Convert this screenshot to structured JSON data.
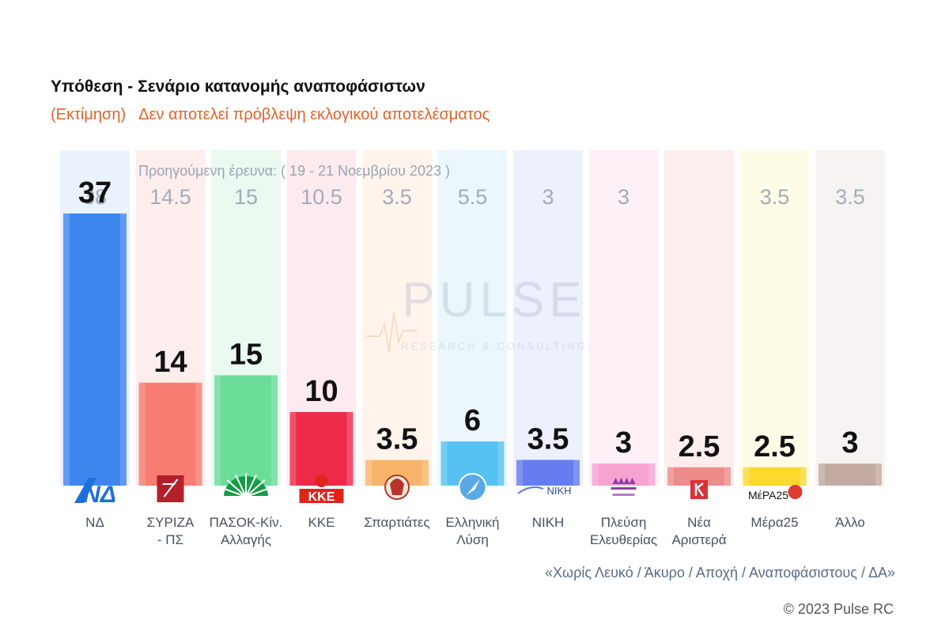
{
  "title": "Υπόθεση - Σενάριο κατανομής αναποφάσιστων",
  "subtitle_estimate": "(Εκτίμηση)",
  "subtitle_note": "Δεν αποτελεί πρόβλεψη εκλογικού αποτελέσματος",
  "watermark": {
    "brand": "PULSE",
    "tagline": "RESEARCH & CONSULTING"
  },
  "footnote": "«Χωρίς Λευκό / Άκυρο / Αποχή / Αναποφάσιστους / ΔΑ»",
  "copyright": "© 2023 Pulse RC",
  "chart_data": {
    "type": "bar",
    "previous_survey_label": "Προηγούμενη έρευνα:  ( 19 - 21 Νοεμβρίου 2023 )",
    "categories": [
      "ΝΔ",
      "ΣΥΡΙΖΑ - ΠΣ",
      "ΠΑΣΟΚ-Κίν. Αλλαγής",
      "ΚΚΕ",
      "Σπαρτιάτες",
      "Ελληνική Λύση",
      "ΝΙΚΗ",
      "Πλεύση Ελευθερίας",
      "Νέα Αριστερά",
      "Μέρα25",
      "Άλλο"
    ],
    "label_lines": [
      [
        "ΝΔ"
      ],
      [
        "ΣΥΡΙΖΑ",
        "- ΠΣ"
      ],
      [
        "ΠΑΣΟΚ-Κίν.",
        "Αλλαγής"
      ],
      [
        "ΚΚΕ"
      ],
      [
        "Σπαρτιάτες"
      ],
      [
        "Ελληνική",
        "Λύση"
      ],
      [
        "ΝΙΚΗ"
      ],
      [
        "Πλεύση",
        "Ελευθερίας"
      ],
      [
        "Νέα",
        "Αριστερά"
      ],
      [
        "Μέρα25"
      ],
      [
        "Άλλο"
      ]
    ],
    "values": [
      37,
      14,
      15,
      10,
      3.5,
      6,
      3.5,
      3,
      2.5,
      2.5,
      3
    ],
    "value_labels": [
      "37",
      "14",
      "15",
      "10",
      "3.5",
      "6",
      "3.5",
      "3",
      "2.5",
      "2.5",
      "3"
    ],
    "previous_labels": [
      "38",
      "14.5",
      "15",
      "10.5",
      "3.5",
      "5.5",
      "3",
      "3",
      "",
      "3.5",
      "3.5"
    ],
    "logos": [
      "ΝΔ",
      "",
      "",
      "ΚΚΕ",
      "",
      "",
      "ΝΙΚΗ",
      "",
      "",
      "ΜέΡΑ25",
      ""
    ],
    "colors": [
      "#3d86ee",
      "#f77c72",
      "#6cdc99",
      "#ed2a48",
      "#f8b56a",
      "#56c2f2",
      "#667df0",
      "#f6a3d0",
      "#ee8c8c",
      "#fbd92e",
      "#c2aaa3"
    ],
    "bg_colors": [
      "#eaf2fd",
      "#fdeeed",
      "#eafaf1",
      "#fdeaee",
      "#fef4ec",
      "#ebf7fd",
      "#edf0fd",
      "#fdf0f7",
      "#fdeeee",
      "#fefbe7",
      "#f7f3f2"
    ],
    "ylim": [
      0,
      40
    ]
  }
}
